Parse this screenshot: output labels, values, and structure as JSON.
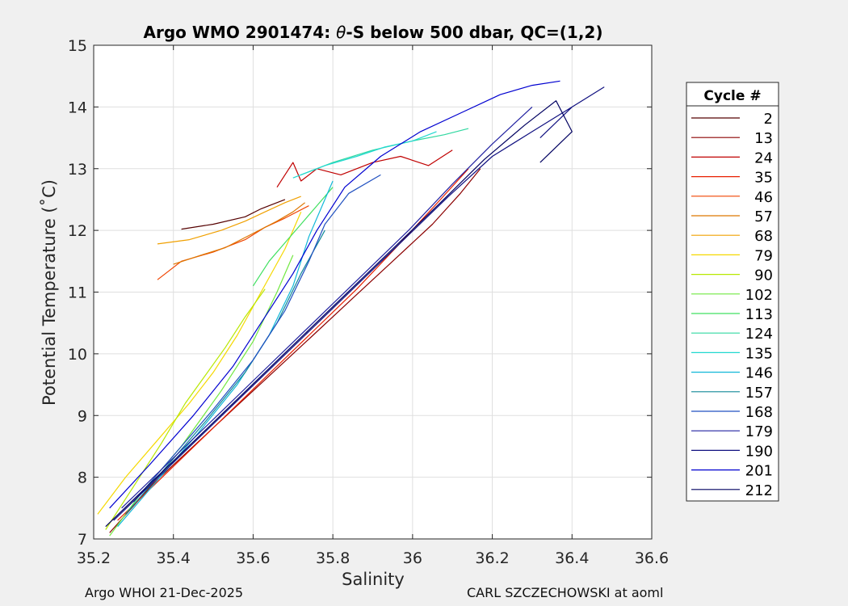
{
  "chart_data": {
    "type": "line",
    "title_prefix": "Argo WMO 2901474: ",
    "title_theta": "θ",
    "title_suffix": "-S below 500 dbar,  QC=(1,2)",
    "xlabel": "Salinity",
    "ylabel": "Potential Temperature (˚C)",
    "xlim": [
      35.2,
      36.6
    ],
    "ylim": [
      7,
      15
    ],
    "xticks": [
      35.2,
      35.4,
      35.6,
      35.8,
      36,
      36.2,
      36.4,
      36.6
    ],
    "xtick_labels": [
      "35.2",
      "35.4",
      "35.6",
      "35.8",
      "36",
      "36.2",
      "36.4",
      "36.6"
    ],
    "yticks": [
      7,
      8,
      9,
      10,
      11,
      12,
      13,
      14,
      15
    ],
    "ytick_labels": [
      "7",
      "8",
      "9",
      "10",
      "11",
      "12",
      "13",
      "14",
      "15"
    ],
    "grid": true,
    "legend": {
      "title": "Cycle #",
      "placement": "outside-right",
      "entries": [
        "2",
        "13",
        "24",
        "35",
        "46",
        "57",
        "68",
        "79",
        "90",
        "102",
        "113",
        "124",
        "135",
        "146",
        "157",
        "168",
        "179",
        "190",
        "201",
        "212"
      ],
      "colors": [
        "#550000",
        "#8b0000",
        "#c00000",
        "#e82000",
        "#f04400",
        "#dd7700",
        "#f0a000",
        "#f5d800",
        "#b8e800",
        "#70e840",
        "#40e060",
        "#30d8a0",
        "#20d8d0",
        "#10b8d8",
        "#108898",
        "#2050c0",
        "#2020a0",
        "#101080",
        "#0000d0",
        "#000060"
      ]
    },
    "series": [
      {
        "name": "2",
        "color": "#550000",
        "s": [
          35.42,
          35.5,
          35.58,
          35.62,
          35.68
        ],
        "t": [
          12.02,
          12.1,
          12.22,
          12.35,
          12.5
        ]
      },
      {
        "name": "13",
        "color": "#8b0000",
        "s": [
          35.24,
          35.35,
          35.45,
          35.55,
          35.65,
          35.75,
          35.85,
          35.95,
          36.05,
          36.12,
          36.17
        ],
        "t": [
          7.1,
          7.9,
          8.5,
          9.1,
          9.7,
          10.3,
          10.9,
          11.5,
          12.1,
          12.6,
          13.0
        ]
      },
      {
        "name": "24",
        "color": "#c00000",
        "s": [
          35.66,
          35.7,
          35.72,
          35.76,
          35.82,
          35.9,
          35.97,
          36.04,
          36.1
        ],
        "t": [
          12.7,
          13.1,
          12.8,
          13.0,
          12.9,
          13.1,
          13.2,
          13.05,
          13.3
        ]
      },
      {
        "name": "35",
        "color": "#e82000",
        "s": [
          35.26,
          35.38,
          35.5,
          35.62,
          35.74,
          35.86,
          35.97,
          36.07,
          36.14
        ],
        "t": [
          7.3,
          8.05,
          8.8,
          9.55,
          10.3,
          11.05,
          11.8,
          12.5,
          13.0
        ]
      },
      {
        "name": "46",
        "color": "#f04400",
        "s": [
          35.36,
          35.42,
          35.5,
          35.58,
          35.63,
          35.68,
          35.74
        ],
        "t": [
          11.2,
          11.5,
          11.65,
          11.85,
          12.05,
          12.2,
          12.4
        ]
      },
      {
        "name": "57",
        "color": "#dd7700",
        "s": [
          35.4,
          35.47,
          35.53,
          35.6,
          35.66,
          35.7,
          35.73
        ],
        "t": [
          11.45,
          11.6,
          11.72,
          11.95,
          12.15,
          12.3,
          12.45
        ]
      },
      {
        "name": "68",
        "color": "#f0a000",
        "s": [
          35.36,
          35.44,
          35.52,
          35.58,
          35.63,
          35.68,
          35.72
        ],
        "t": [
          11.78,
          11.85,
          12.0,
          12.15,
          12.3,
          12.45,
          12.55
        ]
      },
      {
        "name": "79",
        "color": "#f5d800",
        "s": [
          35.21,
          35.28,
          35.36,
          35.44,
          35.5,
          35.56,
          35.62,
          35.68,
          35.72
        ],
        "t": [
          7.4,
          8.0,
          8.6,
          9.2,
          9.7,
          10.3,
          11.0,
          11.7,
          12.3
        ]
      },
      {
        "name": "90",
        "color": "#b8e800",
        "s": [
          35.23,
          35.3,
          35.37,
          35.43,
          35.48,
          35.53,
          35.58,
          35.63
        ],
        "t": [
          7.15,
          7.85,
          8.55,
          9.2,
          9.65,
          10.1,
          10.6,
          11.05
        ]
      },
      {
        "name": "102",
        "color": "#70e840",
        "s": [
          35.24,
          35.32,
          35.42,
          35.52,
          35.6,
          35.66,
          35.7
        ],
        "t": [
          7.05,
          7.75,
          8.5,
          9.4,
          10.2,
          11.0,
          11.6
        ]
      },
      {
        "name": "113",
        "color": "#40e060",
        "s": [
          35.6,
          35.64,
          35.68,
          35.72,
          35.76,
          35.8
        ],
        "t": [
          11.1,
          11.5,
          11.8,
          12.1,
          12.4,
          12.7
        ]
      },
      {
        "name": "124",
        "color": "#30d8a0",
        "s": [
          35.72,
          35.8,
          35.9,
          36.0,
          36.08,
          36.14
        ],
        "t": [
          12.9,
          13.1,
          13.3,
          13.45,
          13.55,
          13.65
        ]
      },
      {
        "name": "135",
        "color": "#20d8d0",
        "s": [
          35.7,
          35.78,
          35.86,
          35.93,
          36.0,
          36.06
        ],
        "t": [
          12.85,
          13.05,
          13.2,
          13.35,
          13.45,
          13.6
        ]
      },
      {
        "name": "146",
        "color": "#10b8d8",
        "s": [
          35.26,
          35.36,
          35.46,
          35.56,
          35.64,
          35.7,
          35.74,
          35.8
        ],
        "t": [
          7.2,
          7.95,
          8.7,
          9.5,
          10.3,
          11.1,
          11.9,
          12.8
        ]
      },
      {
        "name": "157",
        "color": "#108898",
        "s": [
          35.28,
          35.38,
          35.48,
          35.58,
          35.66,
          35.72,
          35.78
        ],
        "t": [
          7.4,
          8.15,
          8.9,
          9.7,
          10.5,
          11.3,
          12.0
        ]
      },
      {
        "name": "168",
        "color": "#2050c0",
        "s": [
          35.3,
          35.4,
          35.5,
          35.6,
          35.68,
          35.74,
          35.78,
          35.84,
          35.92
        ],
        "t": [
          7.6,
          8.35,
          9.1,
          9.9,
          10.7,
          11.5,
          12.1,
          12.6,
          12.9
        ]
      },
      {
        "name": "179",
        "color": "#2020a0",
        "s": [
          35.27,
          35.39,
          35.51,
          35.63,
          35.75,
          35.87,
          35.99,
          36.1,
          36.2,
          36.3
        ],
        "t": [
          7.5,
          8.25,
          9.0,
          9.75,
          10.5,
          11.25,
          12.0,
          12.75,
          13.4,
          14.0
        ]
      },
      {
        "name": "190",
        "color": "#101080",
        "s": [
          35.25,
          35.37,
          35.49,
          35.61,
          35.73,
          35.85,
          35.97,
          36.09,
          36.2,
          36.3,
          36.4,
          36.48,
          36.4,
          36.32
        ],
        "t": [
          7.3,
          8.05,
          8.8,
          9.55,
          10.3,
          11.05,
          11.8,
          12.55,
          13.2,
          13.6,
          14.0,
          14.32,
          14.0,
          13.5
        ]
      },
      {
        "name": "201",
        "color": "#0000d0",
        "s": [
          35.24,
          35.34,
          35.45,
          35.55,
          35.63,
          35.7,
          35.76,
          35.83,
          35.92,
          36.02,
          36.12,
          36.22,
          36.3,
          36.37
        ],
        "t": [
          7.5,
          8.2,
          9.0,
          9.8,
          10.6,
          11.3,
          12.0,
          12.7,
          13.2,
          13.6,
          13.9,
          14.2,
          14.35,
          14.42
        ]
      },
      {
        "name": "212",
        "color": "#000060",
        "s": [
          35.23,
          35.35,
          35.47,
          35.59,
          35.71,
          35.83,
          35.95,
          36.07,
          36.18,
          36.28,
          36.36,
          36.4,
          36.32
        ],
        "t": [
          7.2,
          7.95,
          8.7,
          9.45,
          10.2,
          10.95,
          11.7,
          12.45,
          13.15,
          13.7,
          14.1,
          13.6,
          13.1
        ]
      }
    ]
  },
  "footer": {
    "left": "Argo WHOI 21-Dec-2025",
    "right": "CARL SZCZECHOWSKI at aoml"
  }
}
